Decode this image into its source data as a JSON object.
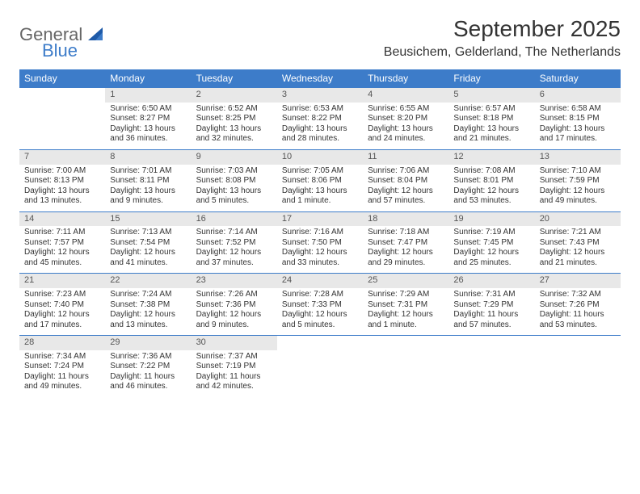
{
  "logo": {
    "general": "General",
    "blue": "Blue"
  },
  "title": "September 2025",
  "location": "Beusichem, Gelderland, The Netherlands",
  "colors": {
    "header_bg": "#3d7cc9",
    "header_text": "#ffffff",
    "daynum_bg": "#e8e8e8",
    "border": "#3d7cc9",
    "text": "#333333",
    "background": "#ffffff"
  },
  "weekdays": [
    "Sunday",
    "Monday",
    "Tuesday",
    "Wednesday",
    "Thursday",
    "Friday",
    "Saturday"
  ],
  "weeks": [
    {
      "nums": [
        "",
        "1",
        "2",
        "3",
        "4",
        "5",
        "6"
      ],
      "cells": [
        {
          "sunrise": "",
          "sunset": "",
          "daylight": ""
        },
        {
          "sunrise": "Sunrise: 6:50 AM",
          "sunset": "Sunset: 8:27 PM",
          "daylight": "Daylight: 13 hours and 36 minutes."
        },
        {
          "sunrise": "Sunrise: 6:52 AM",
          "sunset": "Sunset: 8:25 PM",
          "daylight": "Daylight: 13 hours and 32 minutes."
        },
        {
          "sunrise": "Sunrise: 6:53 AM",
          "sunset": "Sunset: 8:22 PM",
          "daylight": "Daylight: 13 hours and 28 minutes."
        },
        {
          "sunrise": "Sunrise: 6:55 AM",
          "sunset": "Sunset: 8:20 PM",
          "daylight": "Daylight: 13 hours and 24 minutes."
        },
        {
          "sunrise": "Sunrise: 6:57 AM",
          "sunset": "Sunset: 8:18 PM",
          "daylight": "Daylight: 13 hours and 21 minutes."
        },
        {
          "sunrise": "Sunrise: 6:58 AM",
          "sunset": "Sunset: 8:15 PM",
          "daylight": "Daylight: 13 hours and 17 minutes."
        }
      ]
    },
    {
      "nums": [
        "7",
        "8",
        "9",
        "10",
        "11",
        "12",
        "13"
      ],
      "cells": [
        {
          "sunrise": "Sunrise: 7:00 AM",
          "sunset": "Sunset: 8:13 PM",
          "daylight": "Daylight: 13 hours and 13 minutes."
        },
        {
          "sunrise": "Sunrise: 7:01 AM",
          "sunset": "Sunset: 8:11 PM",
          "daylight": "Daylight: 13 hours and 9 minutes."
        },
        {
          "sunrise": "Sunrise: 7:03 AM",
          "sunset": "Sunset: 8:08 PM",
          "daylight": "Daylight: 13 hours and 5 minutes."
        },
        {
          "sunrise": "Sunrise: 7:05 AM",
          "sunset": "Sunset: 8:06 PM",
          "daylight": "Daylight: 13 hours and 1 minute."
        },
        {
          "sunrise": "Sunrise: 7:06 AM",
          "sunset": "Sunset: 8:04 PM",
          "daylight": "Daylight: 12 hours and 57 minutes."
        },
        {
          "sunrise": "Sunrise: 7:08 AM",
          "sunset": "Sunset: 8:01 PM",
          "daylight": "Daylight: 12 hours and 53 minutes."
        },
        {
          "sunrise": "Sunrise: 7:10 AM",
          "sunset": "Sunset: 7:59 PM",
          "daylight": "Daylight: 12 hours and 49 minutes."
        }
      ]
    },
    {
      "nums": [
        "14",
        "15",
        "16",
        "17",
        "18",
        "19",
        "20"
      ],
      "cells": [
        {
          "sunrise": "Sunrise: 7:11 AM",
          "sunset": "Sunset: 7:57 PM",
          "daylight": "Daylight: 12 hours and 45 minutes."
        },
        {
          "sunrise": "Sunrise: 7:13 AM",
          "sunset": "Sunset: 7:54 PM",
          "daylight": "Daylight: 12 hours and 41 minutes."
        },
        {
          "sunrise": "Sunrise: 7:14 AM",
          "sunset": "Sunset: 7:52 PM",
          "daylight": "Daylight: 12 hours and 37 minutes."
        },
        {
          "sunrise": "Sunrise: 7:16 AM",
          "sunset": "Sunset: 7:50 PM",
          "daylight": "Daylight: 12 hours and 33 minutes."
        },
        {
          "sunrise": "Sunrise: 7:18 AM",
          "sunset": "Sunset: 7:47 PM",
          "daylight": "Daylight: 12 hours and 29 minutes."
        },
        {
          "sunrise": "Sunrise: 7:19 AM",
          "sunset": "Sunset: 7:45 PM",
          "daylight": "Daylight: 12 hours and 25 minutes."
        },
        {
          "sunrise": "Sunrise: 7:21 AM",
          "sunset": "Sunset: 7:43 PM",
          "daylight": "Daylight: 12 hours and 21 minutes."
        }
      ]
    },
    {
      "nums": [
        "21",
        "22",
        "23",
        "24",
        "25",
        "26",
        "27"
      ],
      "cells": [
        {
          "sunrise": "Sunrise: 7:23 AM",
          "sunset": "Sunset: 7:40 PM",
          "daylight": "Daylight: 12 hours and 17 minutes."
        },
        {
          "sunrise": "Sunrise: 7:24 AM",
          "sunset": "Sunset: 7:38 PM",
          "daylight": "Daylight: 12 hours and 13 minutes."
        },
        {
          "sunrise": "Sunrise: 7:26 AM",
          "sunset": "Sunset: 7:36 PM",
          "daylight": "Daylight: 12 hours and 9 minutes."
        },
        {
          "sunrise": "Sunrise: 7:28 AM",
          "sunset": "Sunset: 7:33 PM",
          "daylight": "Daylight: 12 hours and 5 minutes."
        },
        {
          "sunrise": "Sunrise: 7:29 AM",
          "sunset": "Sunset: 7:31 PM",
          "daylight": "Daylight: 12 hours and 1 minute."
        },
        {
          "sunrise": "Sunrise: 7:31 AM",
          "sunset": "Sunset: 7:29 PM",
          "daylight": "Daylight: 11 hours and 57 minutes."
        },
        {
          "sunrise": "Sunrise: 7:32 AM",
          "sunset": "Sunset: 7:26 PM",
          "daylight": "Daylight: 11 hours and 53 minutes."
        }
      ]
    },
    {
      "nums": [
        "28",
        "29",
        "30",
        "",
        "",
        "",
        ""
      ],
      "cells": [
        {
          "sunrise": "Sunrise: 7:34 AM",
          "sunset": "Sunset: 7:24 PM",
          "daylight": "Daylight: 11 hours and 49 minutes."
        },
        {
          "sunrise": "Sunrise: 7:36 AM",
          "sunset": "Sunset: 7:22 PM",
          "daylight": "Daylight: 11 hours and 46 minutes."
        },
        {
          "sunrise": "Sunrise: 7:37 AM",
          "sunset": "Sunset: 7:19 PM",
          "daylight": "Daylight: 11 hours and 42 minutes."
        },
        {
          "sunrise": "",
          "sunset": "",
          "daylight": ""
        },
        {
          "sunrise": "",
          "sunset": "",
          "daylight": ""
        },
        {
          "sunrise": "",
          "sunset": "",
          "daylight": ""
        },
        {
          "sunrise": "",
          "sunset": "",
          "daylight": ""
        }
      ]
    }
  ]
}
